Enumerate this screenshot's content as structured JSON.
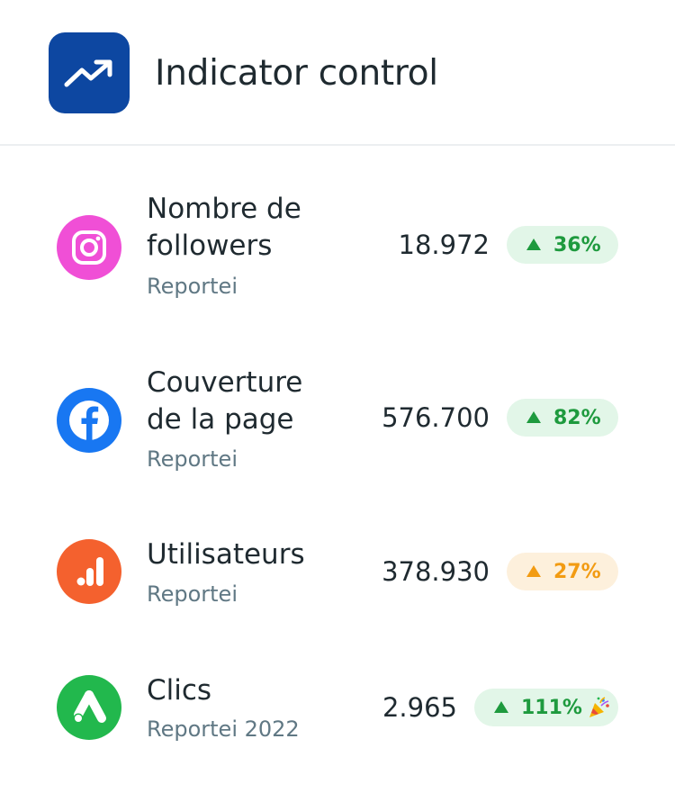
{
  "header": {
    "title": "Indicator control",
    "icon": "trending-up-icon",
    "icon_bg": "#0d47a1"
  },
  "rows": [
    {
      "icon": "instagram-icon",
      "icon_bg": "#f04fd6",
      "title": "Nombre de\nfollowers",
      "subtitle": "Reportei",
      "value": "18.972",
      "change": "36%",
      "trend": "up",
      "status": "green"
    },
    {
      "icon": "facebook-icon",
      "icon_bg": "#1877f2",
      "title": "Couverture\nde la page",
      "subtitle": "Reportei",
      "value": "576.700",
      "change": "82%",
      "trend": "up",
      "status": "green"
    },
    {
      "icon": "analytics-icon",
      "icon_bg": "#f4612e",
      "title": "Utilisateurs",
      "subtitle": "Reportei",
      "value": "378.930",
      "change": "27%",
      "trend": "up",
      "status": "orange"
    },
    {
      "icon": "google-ads-icon",
      "icon_bg": "#22b84d",
      "title": "Clics",
      "subtitle": "Reportei 2022",
      "value": "2.965",
      "change": "111%",
      "trend": "up",
      "status": "green",
      "extra_icon": "party-popper-icon"
    }
  ],
  "colors": {
    "green_text": "#1e9a3e",
    "green_bg": "#e2f6e8",
    "orange_text": "#f29b12",
    "orange_bg": "#fdf0dc",
    "text_primary": "#1f2a30",
    "text_secondary": "#607884"
  }
}
